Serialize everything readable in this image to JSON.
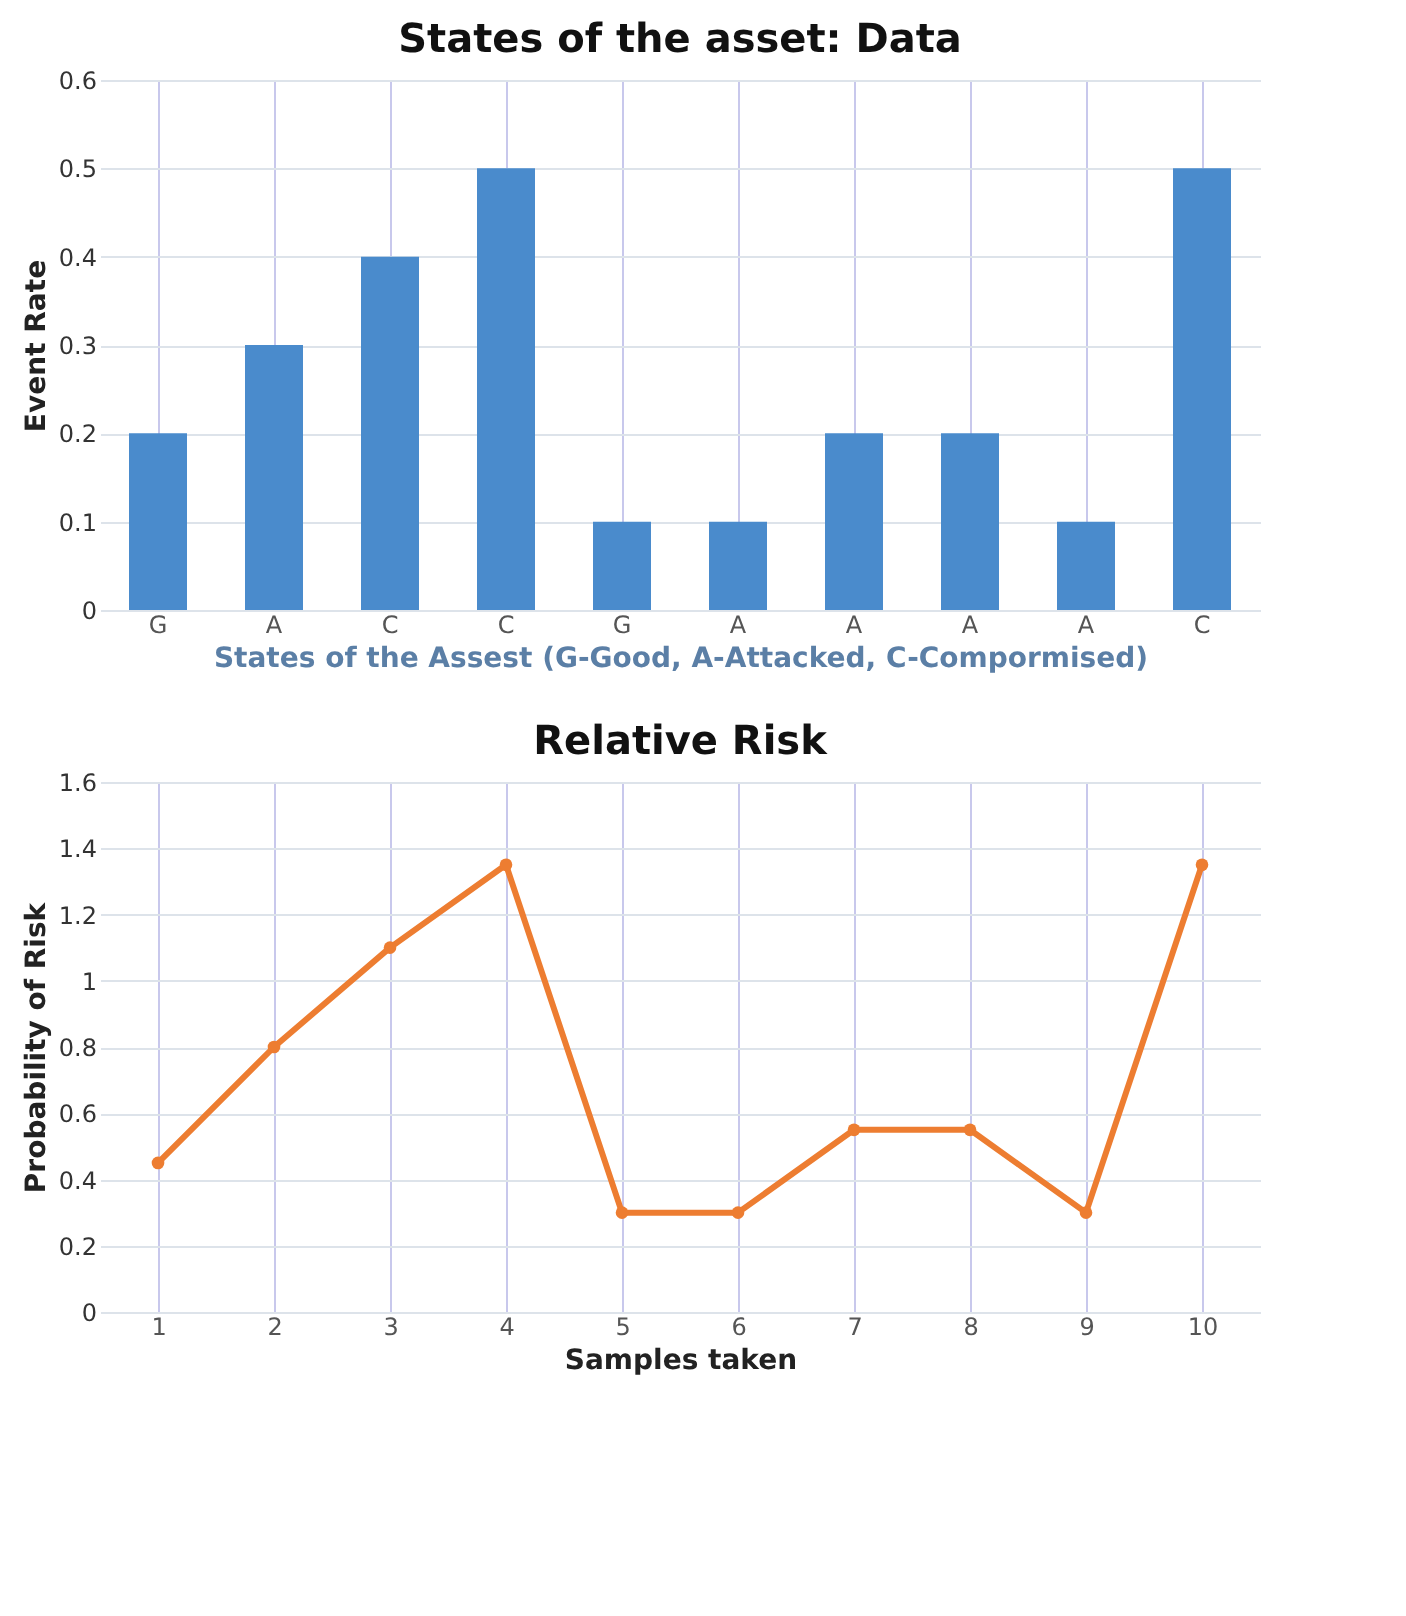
{
  "chart_data": [
    {
      "type": "bar",
      "title": "States of the asset: Data",
      "xlabel": "States of the Assest (G-Good, A-Attacked, C-Compormised)",
      "ylabel": "Event Rate",
      "categories": [
        "G",
        "A",
        "C",
        "C",
        "G",
        "A",
        "A",
        "A",
        "A",
        "C"
      ],
      "series": [
        {
          "color": "#4a8bcc",
          "values": [
            0.2,
            0.3,
            0.4,
            0.5,
            0.1,
            0.1,
            0.2,
            0.2,
            0.1,
            0.5
          ]
        }
      ],
      "ylim": [
        0,
        0.6
      ],
      "yticks": [
        0,
        0.1,
        0.2,
        0.3,
        0.4,
        0.5,
        0.6
      ],
      "grid": true
    },
    {
      "type": "line",
      "title": "Relative Risk",
      "xlabel": "Samples taken",
      "ylabel": "Probability of Risk",
      "categories": [
        "1",
        "2",
        "3",
        "4",
        "5",
        "6",
        "7",
        "8",
        "9",
        "10"
      ],
      "series": [
        {
          "color": "#ed7d31",
          "values": [
            0.45,
            0.8,
            1.1,
            1.35,
            0.3,
            0.3,
            0.55,
            0.55,
            0.3,
            1.35
          ]
        }
      ],
      "ylim": [
        0,
        1.6
      ],
      "yticks": [
        0,
        0.2,
        0.4,
        0.6,
        0.8,
        1,
        1.2,
        1.4,
        1.6
      ],
      "grid": true,
      "marker": "circle",
      "line_style": "solid"
    }
  ]
}
